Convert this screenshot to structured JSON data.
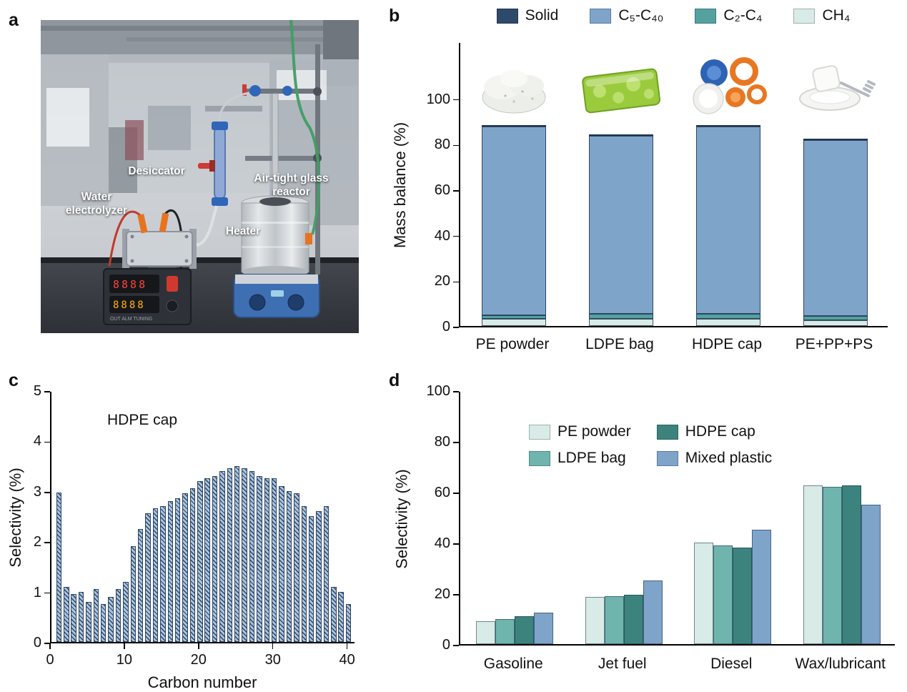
{
  "panels": {
    "a": {
      "label": "a",
      "photo_annotations": [
        "Water electrolyzer",
        "Desiccator",
        "Air-tight glass reactor",
        "Heater"
      ]
    },
    "b": {
      "label": "b"
    },
    "c": {
      "label": "c"
    },
    "d": {
      "label": "d"
    }
  },
  "chart_data": [
    {
      "id": "mass_balance",
      "type": "bar",
      "stacked": true,
      "ylabel": "Mass balance (%)",
      "ylim": [
        0,
        125
      ],
      "yticks": [
        0,
        20,
        40,
        60,
        80,
        100
      ],
      "categories": [
        "PE powder",
        "LDPE bag",
        "HDPE cap",
        "PE+PP+PS"
      ],
      "photos": [
        "pe-powder-photo",
        "ldpe-bag-photo",
        "hdpe-caps-photo",
        "mixed-plastics-photo"
      ],
      "series": [
        {
          "name": "CH4",
          "label": "CH₄",
          "color": "#d9ebe6",
          "values": [
            3.0,
            3.2,
            3.2,
            2.5
          ]
        },
        {
          "name": "C2-C4",
          "label": "C₂-C₄",
          "color": "#55a1a0",
          "values": [
            1.8,
            2.0,
            2.0,
            1.8
          ]
        },
        {
          "name": "C5-C40",
          "label": "C₅-C₄₀",
          "color": "#7ea4ca",
          "values": [
            82.7,
            78.3,
            82.3,
            77.5
          ]
        },
        {
          "name": "Solid",
          "label": "Solid",
          "color": "#2e4a6b",
          "values": [
            0.3,
            0.3,
            0.3,
            0.3
          ]
        }
      ],
      "legend_order": [
        "Solid",
        "C5-C40",
        "C2-C4",
        "CH4"
      ],
      "legend_position": "top",
      "grid": false
    },
    {
      "id": "carbon_selectivity",
      "type": "bar",
      "annotation": "HDPE cap",
      "xlabel": "Carbon number",
      "ylabel": "Selectivity (%)",
      "xlim": [
        0,
        41
      ],
      "ylim": [
        0,
        5
      ],
      "xticks": [
        0,
        10,
        20,
        30,
        40
      ],
      "yticks": [
        0,
        1,
        2,
        3,
        4,
        5
      ],
      "bar_color": "#aec4de",
      "hatch": "diagonal",
      "grid": false,
      "x": [
        1,
        2,
        3,
        4,
        5,
        6,
        7,
        8,
        9,
        10,
        11,
        12,
        13,
        14,
        15,
        16,
        17,
        18,
        19,
        20,
        21,
        22,
        23,
        24,
        25,
        26,
        27,
        28,
        29,
        30,
        31,
        32,
        33,
        34,
        35,
        36,
        37,
        38,
        39,
        40
      ],
      "values": [
        2.97,
        1.1,
        0.95,
        1.0,
        0.8,
        1.05,
        0.75,
        0.9,
        1.05,
        1.2,
        1.9,
        2.25,
        2.55,
        2.65,
        2.7,
        2.8,
        2.85,
        2.95,
        3.05,
        3.2,
        3.25,
        3.3,
        3.4,
        3.45,
        3.5,
        3.45,
        3.4,
        3.3,
        3.25,
        3.25,
        3.1,
        3.0,
        2.95,
        2.7,
        2.5,
        2.6,
        2.7,
        1.1,
        1.0,
        0.75
      ]
    },
    {
      "id": "fuel_selectivity",
      "type": "bar",
      "grouped": true,
      "ylabel": "Selectivity (%)",
      "ylim": [
        0,
        100
      ],
      "yticks": [
        0,
        20,
        40,
        60,
        80,
        100
      ],
      "categories": [
        "Gasoline",
        "Jet fuel",
        "Diesel",
        "Wax/lubricant"
      ],
      "series": [
        {
          "name": "PE powder",
          "color": "#d9ebe6",
          "values": [
            9,
            18.5,
            40,
            62.5
          ]
        },
        {
          "name": "LDPE bag",
          "color": "#6fb5ae",
          "values": [
            10,
            19,
            39,
            62
          ]
        },
        {
          "name": "HDPE cap",
          "color": "#3d837d",
          "values": [
            11,
            19.5,
            38,
            62.5
          ]
        },
        {
          "name": "Mixed plastic",
          "color": "#7ea4ca",
          "values": [
            12.5,
            25,
            45,
            55
          ]
        }
      ],
      "legend_order": [
        "PE powder",
        "HDPE cap",
        "LDPE bag",
        "Mixed plastic"
      ],
      "legend_position": "inside-top",
      "grid": false
    }
  ]
}
